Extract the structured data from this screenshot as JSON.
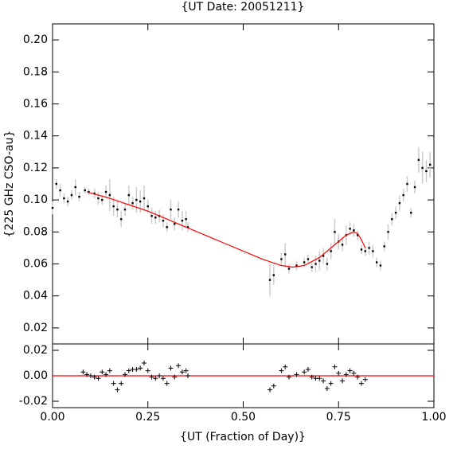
{
  "chart_data": [
    {
      "type": "scatter",
      "title": "{UT Date: 20051211}",
      "ylabel": "{225 GHz CSO-au}",
      "xlim": [
        0,
        1
      ],
      "xticks": [
        0,
        0.25,
        0.5,
        0.75,
        1
      ],
      "ylim": [
        0.01,
        0.21
      ],
      "yticks": [
        0.02,
        0.04,
        0.06,
        0.08,
        {
          "value": 0.1,
          "label": "0.10"
        },
        0.12,
        0.14,
        0.16,
        0.18,
        {
          "value": 0.2,
          "label": "0.20"
        }
      ],
      "points": {
        "color": "#000000",
        "error_color": "#cccccc",
        "x": [
          0,
          0.01,
          0.02,
          0.03,
          0.04,
          0.05,
          0.06,
          0.07,
          0.085,
          0.095,
          0.11,
          0.12,
          0.13,
          0.14,
          0.15,
          0.16,
          0.17,
          0.18,
          0.19,
          0.2,
          0.21,
          0.22,
          0.23,
          0.24,
          0.25,
          0.26,
          0.27,
          0.28,
          0.29,
          0.3,
          0.31,
          0.32,
          0.33,
          0.34,
          0.35,
          0.355,
          0.57,
          0.58,
          0.6,
          0.61,
          0.62,
          0.64,
          0.66,
          0.67,
          0.68,
          0.69,
          0.7,
          0.71,
          0.72,
          0.73,
          0.74,
          0.75,
          0.76,
          0.77,
          0.78,
          0.79,
          0.8,
          0.81,
          0.82,
          0.83,
          0.84,
          0.85,
          0.86,
          0.87,
          0.88,
          0.89,
          0.9,
          0.91,
          0.92,
          0.93,
          0.94,
          0.95,
          0.96,
          0.97,
          0.98,
          0.99
        ],
        "y": [
          0.095,
          0.11,
          0.106,
          0.101,
          0.099,
          0.103,
          0.108,
          0.102,
          0.106,
          0.105,
          0.104,
          0.101,
          0.1,
          0.105,
          0.103,
          0.096,
          0.094,
          0.088,
          0.094,
          0.103,
          0.098,
          0.1,
          0.099,
          0.101,
          0.096,
          0.09,
          0.089,
          0.09,
          0.087,
          0.083,
          0.094,
          0.085,
          0.094,
          0.087,
          0.088,
          0.083,
          0.05,
          0.053,
          0.063,
          0.066,
          0.057,
          0.059,
          0.061,
          0.063,
          0.058,
          0.06,
          0.062,
          0.065,
          0.06,
          0.068,
          0.08,
          0.074,
          0.072,
          0.078,
          0.082,
          0.081,
          0.078,
          0.069,
          0.068,
          0.07,
          0.068,
          0.061,
          0.059,
          0.071,
          0.08,
          0.088,
          0.092,
          0.098,
          0.103,
          0.11,
          0.092,
          0.108,
          0.125,
          0.12,
          0.118,
          0.122
        ],
        "errors": [
          0.004,
          0.003,
          0.004,
          0.003,
          0.003,
          0.003,
          0.005,
          0.003,
          0.002,
          0.002,
          0.003,
          0.004,
          0.003,
          0.004,
          0.01,
          0.006,
          0.005,
          0.005,
          0.004,
          0.006,
          0.004,
          0.008,
          0.007,
          0.008,
          0.004,
          0.005,
          0.004,
          0.004,
          0.004,
          0.003,
          0.006,
          0.004,
          0.005,
          0.006,
          0.005,
          0.003,
          0.01,
          0.006,
          0.004,
          0.007,
          0.003,
          0.003,
          0.003,
          0.003,
          0.003,
          0.005,
          0.006,
          0.005,
          0.004,
          0.005,
          0.008,
          0.005,
          0.004,
          0.006,
          0.004,
          0.004,
          0.003,
          0.003,
          0.003,
          0.004,
          0.004,
          0.003,
          0.003,
          0.003,
          0.005,
          0.004,
          0.004,
          0.005,
          0.004,
          0.005,
          0.003,
          0.004,
          0.008,
          0.01,
          0.007,
          0.008
        ]
      },
      "fit": {
        "color": "#ff0000",
        "x": [
          0.09,
          0.15,
          0.2,
          0.25,
          0.3,
          0.35,
          0.45,
          0.55,
          0.6,
          0.63,
          0.66,
          0.7,
          0.74,
          0.77,
          0.79,
          0.8,
          0.81,
          0.82
        ],
        "y": [
          0.105,
          0.101,
          0.097,
          0.093,
          0.088,
          0.083,
          0.073,
          0.063,
          0.059,
          0.058,
          0.059,
          0.064,
          0.072,
          0.078,
          0.08,
          0.079,
          0.075,
          0.07
        ]
      }
    },
    {
      "type": "scatter",
      "xlabel": "{UT (Fraction of Day)}",
      "xlim": [
        0,
        1
      ],
      "xticks": [
        {
          "value": 0,
          "label": "0.00"
        },
        0.25,
        {
          "value": 0.5,
          "label": "0.50"
        },
        0.75,
        {
          "value": 1,
          "label": "1.00"
        }
      ],
      "ylim": [
        -0.025,
        0.025
      ],
      "yticks": [
        -0.02,
        {
          "value": 0,
          "label": "0.00"
        },
        0.02
      ],
      "reference_line": {
        "y": 0,
        "color": "#ff0000"
      },
      "residuals": {
        "color": "#000000",
        "x": [
          0.08,
          0.09,
          0.1,
          0.11,
          0.12,
          0.13,
          0.14,
          0.15,
          0.16,
          0.17,
          0.18,
          0.19,
          0.2,
          0.21,
          0.22,
          0.23,
          0.24,
          0.25,
          0.26,
          0.27,
          0.28,
          0.29,
          0.3,
          0.31,
          0.32,
          0.33,
          0.34,
          0.35,
          0.355,
          0.57,
          0.58,
          0.6,
          0.61,
          0.62,
          0.64,
          0.66,
          0.67,
          0.68,
          0.69,
          0.7,
          0.71,
          0.72,
          0.73,
          0.74,
          0.75,
          0.76,
          0.77,
          0.78,
          0.79,
          0.8,
          0.81,
          0.82
        ],
        "y": [
          0.003,
          0.001,
          0,
          -0.001,
          -0.002,
          0.003,
          0.001,
          0.004,
          -0.006,
          -0.011,
          -0.006,
          0.001,
          0.004,
          0.005,
          0.005,
          0.006,
          0.01,
          0.004,
          -0.001,
          -0.002,
          0,
          -0.002,
          -0.006,
          0.006,
          -0.001,
          0.008,
          0.003,
          0.004,
          0,
          -0.011,
          -0.008,
          0.004,
          0.007,
          -0.001,
          0.001,
          0.003,
          0.005,
          -0.001,
          -0.002,
          -0.002,
          -0.004,
          -0.01,
          -0.006,
          0.007,
          0.002,
          -0.004,
          0.001,
          0.004,
          0.002,
          -0.001,
          -0.006,
          -0.003
        ]
      }
    }
  ]
}
